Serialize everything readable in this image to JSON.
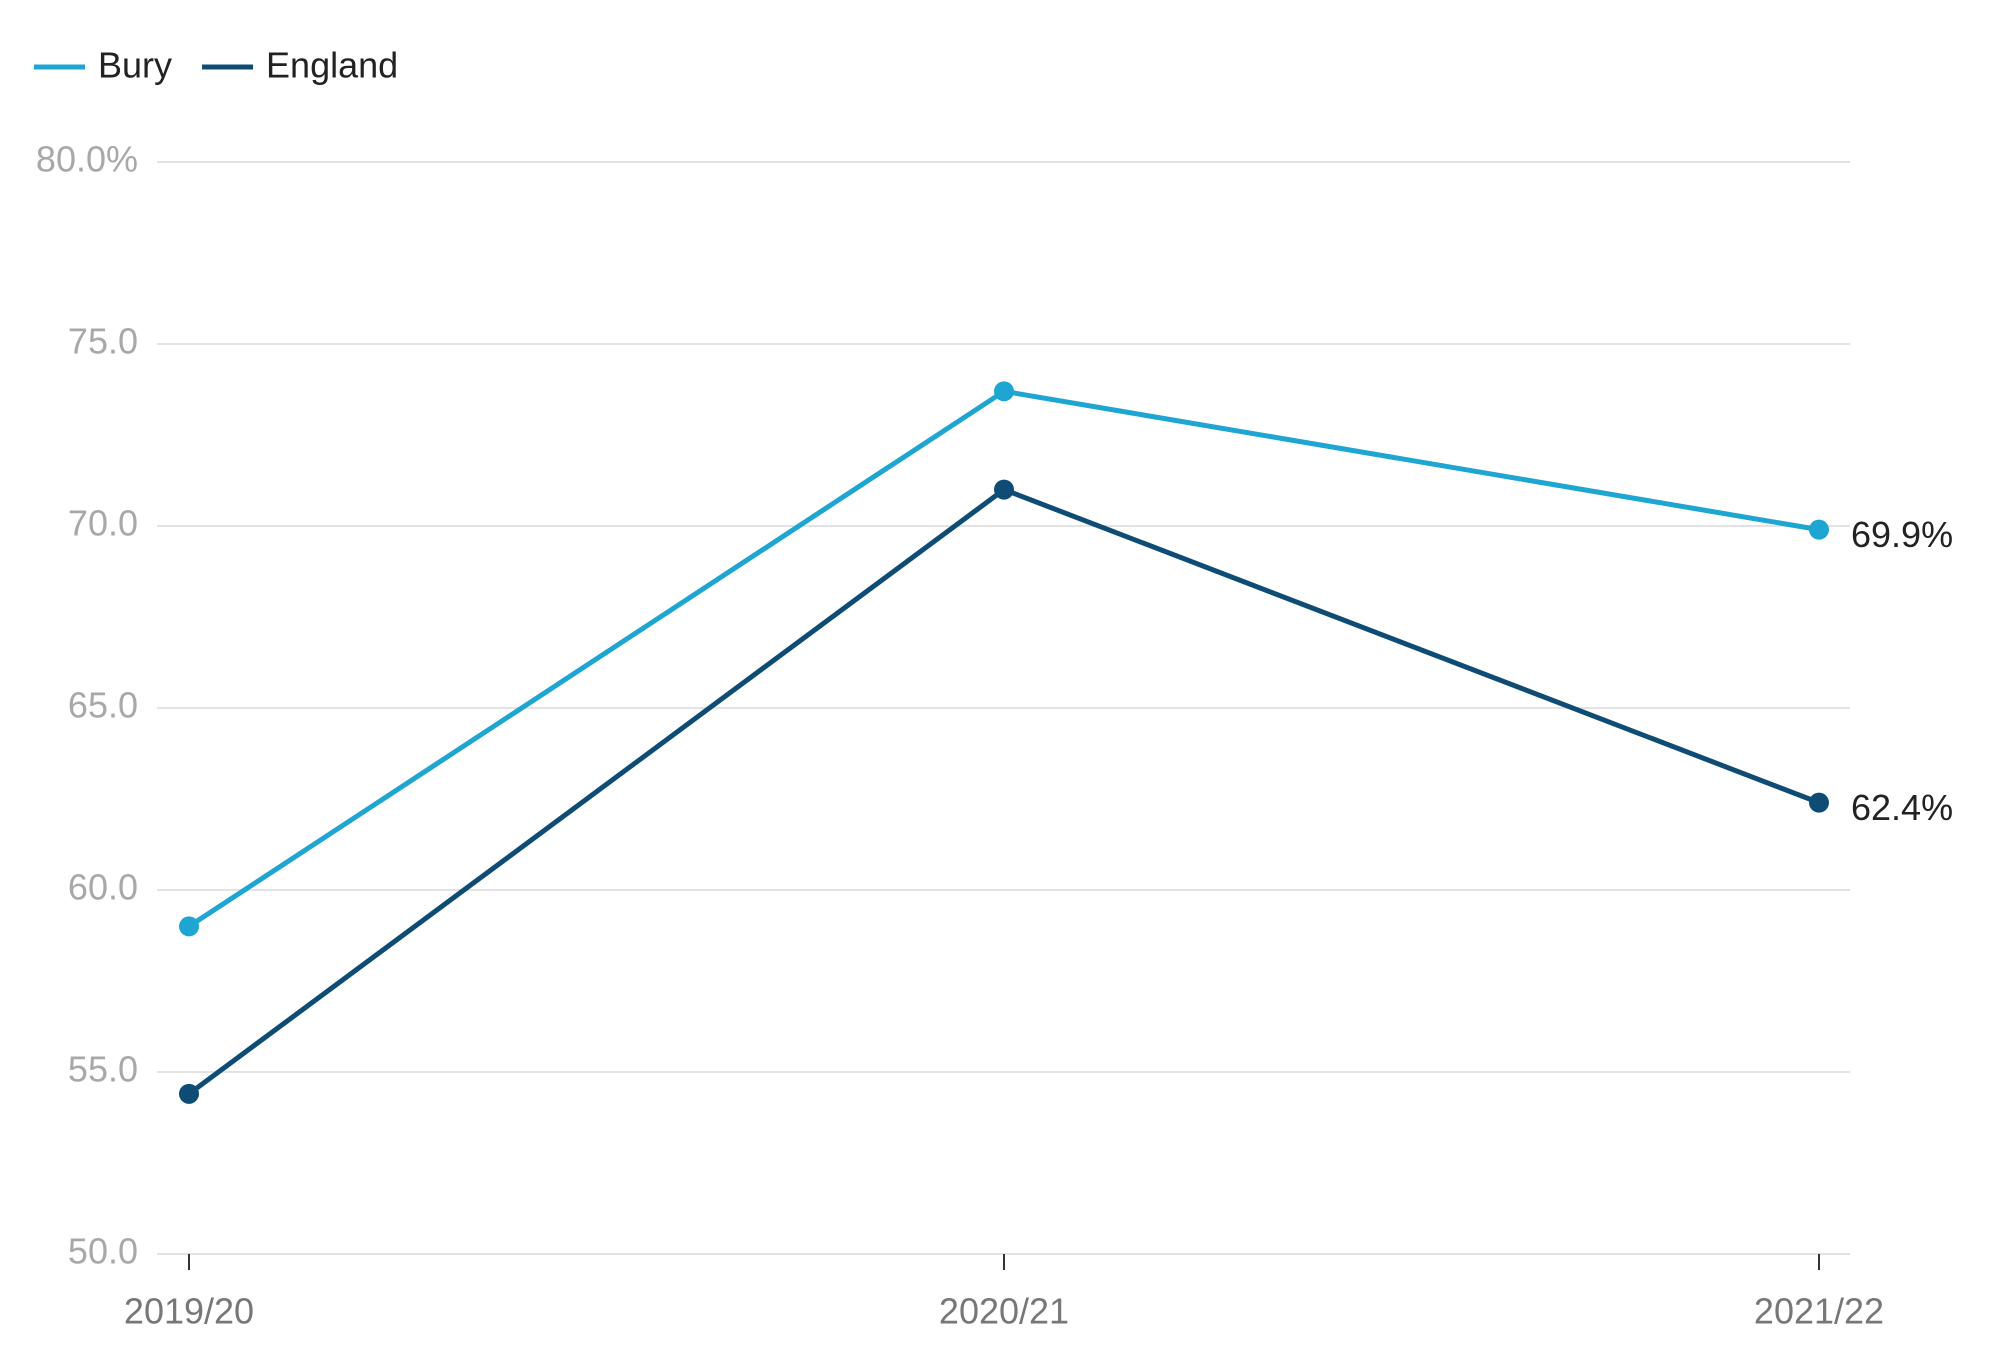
{
  "chart_data": {
    "type": "line",
    "categories": [
      "2019/20",
      "2020/21",
      "2021/22"
    ],
    "series": [
      {
        "name": "Bury",
        "color": "#1ea5d2",
        "values": [
          59.0,
          73.7,
          69.9
        ],
        "value_labels": [
          null,
          null,
          "69.9%"
        ]
      },
      {
        "name": "England",
        "color": "#0e4c75",
        "values": [
          54.4,
          71.0,
          62.4
        ],
        "value_labels": [
          null,
          null,
          "62.4%"
        ]
      }
    ],
    "ylim": [
      50,
      80
    ],
    "yticks": [
      {
        "value": 50,
        "label": "50.0"
      },
      {
        "value": 55,
        "label": "55.0"
      },
      {
        "value": 60,
        "label": "60.0"
      },
      {
        "value": 65,
        "label": "65.0"
      },
      {
        "value": 70,
        "label": "70.0"
      },
      {
        "value": 75,
        "label": "75.0"
      },
      {
        "value": 80,
        "label": "80.0%"
      }
    ],
    "grid": true,
    "legend": "top-left"
  }
}
